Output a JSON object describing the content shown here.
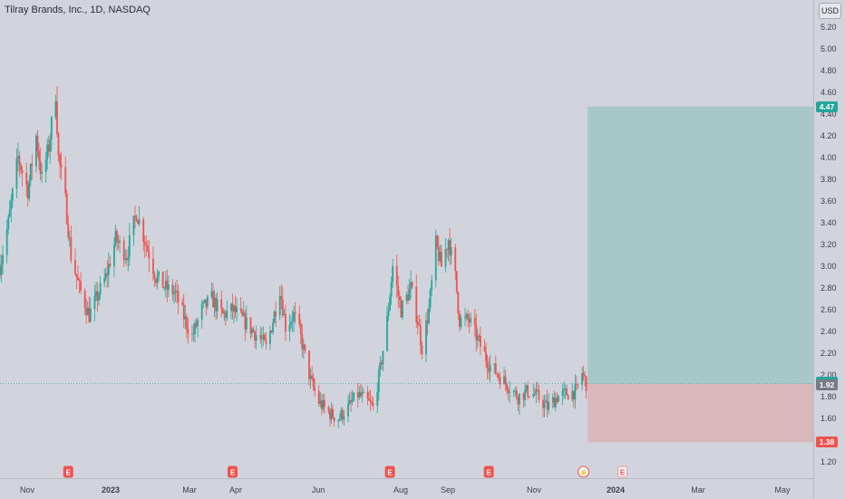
{
  "header": {
    "symbol_title": "Tilray Brands, Inc., 1D, NASDAQ",
    "currency": "USD"
  },
  "colors": {
    "up": "#26a69a",
    "down": "#ef5350",
    "target_zone": "#a8c8c8",
    "stop_zone": "#d8b8bb",
    "target_tag": "#26a69a",
    "stop_tag": "#ef5350",
    "current_tag": "#787b86",
    "entry_line": "#26a69a"
  },
  "price_axis": {
    "ticks": [
      "5.20",
      "5.00",
      "4.80",
      "4.60",
      "4.40",
      "4.20",
      "4.00",
      "3.80",
      "3.60",
      "3.40",
      "3.20",
      "3.00",
      "2.80",
      "2.60",
      "2.40",
      "2.20",
      "2.00",
      "1.80",
      "1.60",
      "1.40",
      "1.20"
    ],
    "tags": [
      {
        "label": "4.47",
        "value": 4.47,
        "color_key": "target_tag"
      },
      {
        "label": "1.92",
        "value": 1.935,
        "color_key": "target_tag"
      },
      {
        "label": "1.92",
        "value": 1.905,
        "color_key": "current_tag"
      },
      {
        "label": "1.38",
        "value": 1.38,
        "color_key": "stop_tag"
      }
    ]
  },
  "time_axis": {
    "ticks": [
      {
        "label": "Nov",
        "bold": false
      },
      {
        "label": "2023",
        "bold": true
      },
      {
        "label": "Mar",
        "bold": false
      },
      {
        "label": "Apr",
        "bold": false
      },
      {
        "label": "Jun",
        "bold": false
      },
      {
        "label": "Aug",
        "bold": false
      },
      {
        "label": "Sep",
        "bold": false
      },
      {
        "label": "Nov",
        "bold": false
      },
      {
        "label": "2024",
        "bold": true
      },
      {
        "label": "Mar",
        "bold": false
      },
      {
        "label": "May",
        "bold": false
      }
    ]
  },
  "events": [
    {
      "type": "earnings",
      "label": "E",
      "date": "2022-12-07"
    },
    {
      "type": "earnings",
      "label": "E",
      "date": "2023-04-04"
    },
    {
      "type": "earnings",
      "label": "E",
      "date": "2023-07-26"
    },
    {
      "type": "earnings",
      "label": "E",
      "date": "2023-10-05"
    },
    {
      "type": "split",
      "label": "⚡",
      "date": "2023-12-12"
    },
    {
      "type": "earnings-upcoming",
      "label": "E",
      "date": "2024-01-09"
    }
  ],
  "chart_data": {
    "type": "candlestick",
    "title": "Tilray Brands, Inc., 1D, NASDAQ",
    "ylim": [
      1.1,
      5.35
    ],
    "x_range": [
      "2022-10-19",
      "2024-05-25"
    ],
    "position_tool": {
      "entry": 1.92,
      "target": 4.47,
      "stop": 1.38,
      "start_date": "2023-12-15",
      "end_date": "2024-05-25"
    },
    "price_path": [
      [
        "2022-10-19",
        3.0
      ],
      [
        "2022-10-25",
        3.4
      ],
      [
        "2022-11-01",
        4.0
      ],
      [
        "2022-11-08",
        3.7
      ],
      [
        "2022-11-14",
        4.2
      ],
      [
        "2022-11-18",
        3.8
      ],
      [
        "2022-11-23",
        4.1
      ],
      [
        "2022-11-28",
        4.6
      ],
      [
        "2022-11-30",
        4.0
      ],
      [
        "2022-12-05",
        3.6
      ],
      [
        "2022-12-09",
        3.1
      ],
      [
        "2022-12-15",
        2.8
      ],
      [
        "2022-12-22",
        2.55
      ],
      [
        "2023-01-03",
        2.9
      ],
      [
        "2023-01-10",
        3.25
      ],
      [
        "2023-01-18",
        3.1
      ],
      [
        "2023-01-25",
        3.5
      ],
      [
        "2023-02-01",
        3.2
      ],
      [
        "2023-02-08",
        2.9
      ],
      [
        "2023-02-15",
        2.8
      ],
      [
        "2023-02-22",
        2.75
      ],
      [
        "2023-03-01",
        2.5
      ],
      [
        "2023-03-06",
        2.35
      ],
      [
        "2023-03-13",
        2.6
      ],
      [
        "2023-03-20",
        2.7
      ],
      [
        "2023-03-28",
        2.55
      ],
      [
        "2023-04-04",
        2.6
      ],
      [
        "2023-04-12",
        2.5
      ],
      [
        "2023-04-19",
        2.4
      ],
      [
        "2023-04-26",
        2.3
      ],
      [
        "2023-04-28",
        2.25
      ],
      [
        "2023-05-03",
        2.5
      ],
      [
        "2023-05-08",
        2.8
      ],
      [
        "2023-05-12",
        2.45
      ],
      [
        "2023-05-18",
        2.55
      ],
      [
        "2023-05-22",
        2.4
      ],
      [
        "2023-05-30",
        1.95
      ],
      [
        "2023-06-05",
        1.75
      ],
      [
        "2023-06-12",
        1.65
      ],
      [
        "2023-06-19",
        1.6
      ],
      [
        "2023-06-26",
        1.7
      ],
      [
        "2023-07-03",
        1.82
      ],
      [
        "2023-07-10",
        1.75
      ],
      [
        "2023-07-14",
        1.7
      ],
      [
        "2023-07-19",
        2.05
      ],
      [
        "2023-07-24",
        2.5
      ],
      [
        "2023-07-28",
        3.0
      ],
      [
        "2023-08-03",
        2.6
      ],
      [
        "2023-08-10",
        2.8
      ],
      [
        "2023-08-15",
        2.5
      ],
      [
        "2023-08-18",
        2.25
      ],
      [
        "2023-08-23",
        2.6
      ],
      [
        "2023-08-28",
        3.2
      ],
      [
        "2023-09-01",
        3.0
      ],
      [
        "2023-09-06",
        3.25
      ],
      [
        "2023-09-11",
        2.9
      ],
      [
        "2023-09-14",
        2.5
      ],
      [
        "2023-09-21",
        2.5
      ],
      [
        "2023-09-28",
        2.3
      ],
      [
        "2023-10-05",
        2.1
      ],
      [
        "2023-10-12",
        2.0
      ],
      [
        "2023-10-19",
        1.9
      ],
      [
        "2023-10-26",
        1.8
      ],
      [
        "2023-11-02",
        1.85
      ],
      [
        "2023-11-09",
        1.8
      ],
      [
        "2023-11-16",
        1.7
      ],
      [
        "2023-11-23",
        1.8
      ],
      [
        "2023-11-30",
        1.83
      ],
      [
        "2023-12-07",
        1.85
      ],
      [
        "2023-12-11",
        2.02
      ],
      [
        "2023-12-14",
        1.92
      ]
    ]
  }
}
